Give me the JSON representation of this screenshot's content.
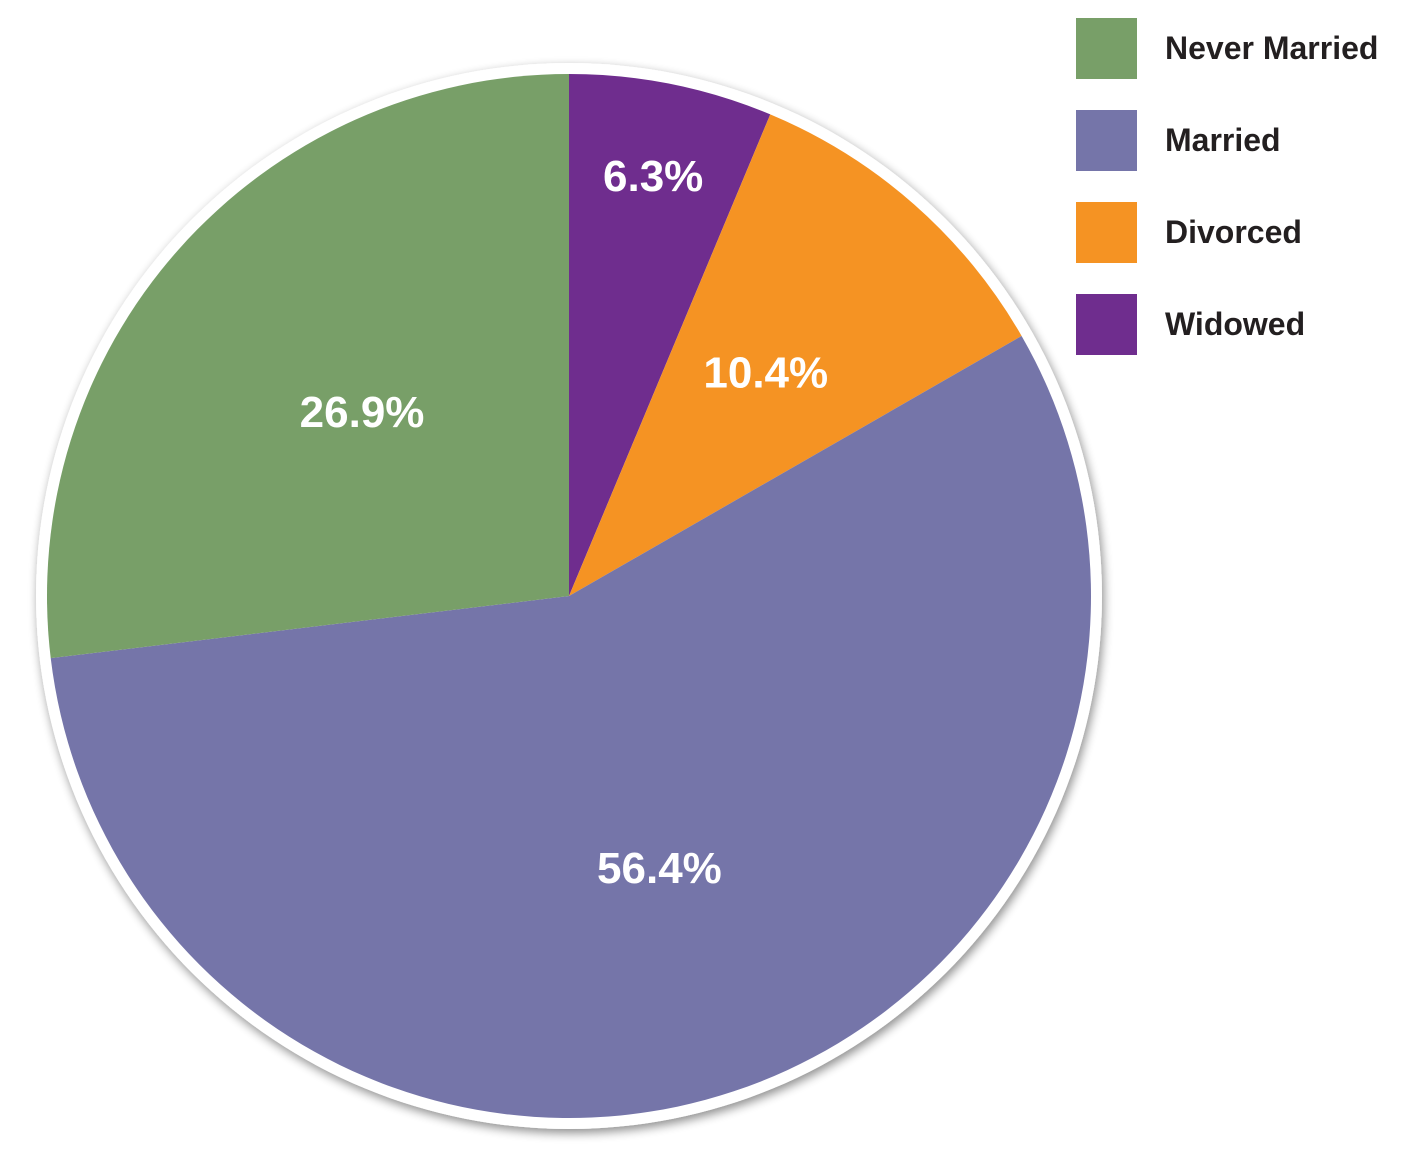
{
  "chart_data": {
    "type": "pie",
    "categories": [
      "Never Married",
      "Married",
      "Divorced",
      "Widowed"
    ],
    "values": [
      26.9,
      56.4,
      10.4,
      6.3
    ],
    "labels": [
      "26.9%",
      "56.4%",
      "10.4%",
      "6.3%"
    ],
    "colors": [
      "#789f68",
      "#7575a9",
      "#f59323",
      "#6f2d8e"
    ],
    "legend_position": "top-right",
    "start_angle": "12 o'clock",
    "direction": "clockwise"
  },
  "legend": {
    "items": [
      {
        "label": "Never Married",
        "color": "#789f68"
      },
      {
        "label": "Married",
        "color": "#7575a9"
      },
      {
        "label": "Divorced",
        "color": "#f59323"
      },
      {
        "label": "Widowed",
        "color": "#6f2d8e"
      }
    ]
  }
}
